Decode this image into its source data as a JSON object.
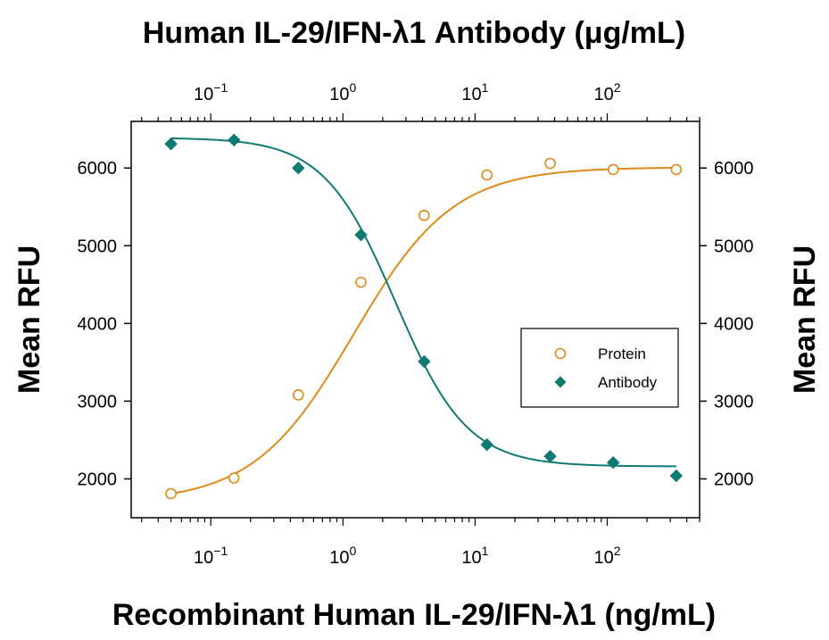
{
  "chart_data": {
    "type": "scatter",
    "title": "Human IL-29/IFN-λ1 Antibody (μg/mL)",
    "xlabel": "Recombinant Human IL-29/IFN-λ1 (ng/mL)",
    "ylabel": "Mean RFU",
    "ylabel_right": "Mean RFU",
    "x_scale": "log",
    "xlim": [
      0.025,
      500
    ],
    "ylim": [
      1500,
      6600
    ],
    "y_ticks": [
      2000,
      3000,
      4000,
      5000,
      6000
    ],
    "x_ticks": [
      {
        "value": 0.1,
        "base": "10",
        "exp": "−1"
      },
      {
        "value": 1,
        "base": "10",
        "exp": "0"
      },
      {
        "value": 10,
        "base": "10",
        "exp": "1"
      },
      {
        "value": 100,
        "base": "10",
        "exp": "2"
      }
    ],
    "top_x_ticks": [
      {
        "value": 0.1,
        "base": "10",
        "exp": "−1"
      },
      {
        "value": 1,
        "base": "10",
        "exp": "0"
      },
      {
        "value": 10,
        "base": "10",
        "exp": "1"
      },
      {
        "value": 100,
        "base": "10",
        "exp": "2"
      }
    ],
    "legend_position": "center-right",
    "series": [
      {
        "name": "Protein",
        "color": "#E08A1A",
        "marker": "open-circle",
        "x": [
          0.05,
          0.15,
          0.46,
          1.37,
          4.12,
          12.3,
          37,
          111,
          333
        ],
        "y": [
          1810,
          2010,
          3080,
          4530,
          5390,
          5910,
          6060,
          5980,
          5980
        ],
        "fit": {
          "bottom": 1700,
          "top": 6010,
          "ec50": 1.2,
          "hill": 1.15
        }
      },
      {
        "name": "Antibody",
        "color": "#0E7A72",
        "marker": "filled-diamond",
        "x": [
          0.05,
          0.15,
          0.46,
          1.37,
          4.12,
          12.3,
          37,
          111,
          333
        ],
        "y": [
          6310,
          6360,
          6000,
          5140,
          3510,
          2440,
          2290,
          2210,
          2040
        ],
        "fit": {
          "bottom": 2160,
          "top": 6390,
          "ec50": 2.5,
          "hill": 1.6
        }
      }
    ]
  }
}
